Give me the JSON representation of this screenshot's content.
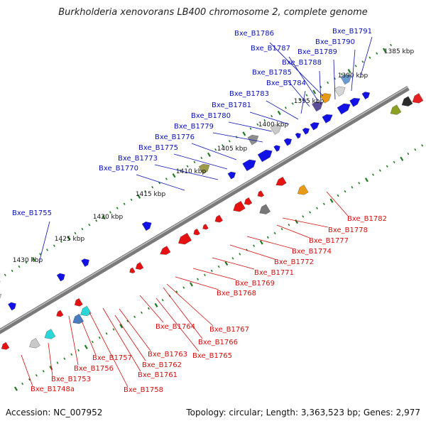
{
  "title": "Burkholderia xenovorans LB400 chromosome 2, complete genome",
  "footer": {
    "accession": "Accession: NC_007952",
    "summary": "Topology: circular; Length: 3,363,523 bp; Genes: 2,977"
  },
  "colors": {
    "forward_label": "#0a10b8",
    "reverse_label": "#d40d0d",
    "backbone": "#7a7a7a",
    "tick": "#1f7a1f",
    "forward_gene": "#1212e6",
    "reverse_gene": "#e61212"
  },
  "kbp_labels": [
    "1385 kbp",
    "1390 kbp",
    "1395 kbp",
    "1400 kbp",
    "1405 kbp",
    "1410 kbp",
    "1415 kbp",
    "1420 kbp",
    "1425 kbp",
    "1430 kbp"
  ],
  "forward_labels": [
    "Bxe_B1786",
    "Bxe_B1787",
    "Bxe_B1788",
    "Bxe_B1789",
    "Bxe_B1790",
    "Bxe_B1791",
    "Bxe_B1785",
    "Bxe_B1784",
    "Bxe_B1783",
    "Bxe_B1781",
    "Bxe_B1780",
    "Bxe_B1779",
    "Bxe_B1776",
    "Bxe_B1775",
    "Bxe_B1773",
    "Bxe_B1770",
    "Bxe_B1755"
  ],
  "reverse_labels": [
    "Bxe_B1782",
    "Bxe_B1778",
    "Bxe_B1777",
    "Bxe_B1774",
    "Bxe_B1772",
    "Bxe_B1771",
    "Bxe_B1769",
    "Bxe_B1768",
    "Bxe_B1767",
    "Bxe_B1764",
    "Bxe_B1766",
    "Bxe_B1765",
    "Bxe_B1763",
    "Bxe_B1762",
    "Bxe_B1761",
    "Bxe_B1757",
    "Bxe_B1756",
    "Bxe_B1758",
    "Bxe_B1753",
    "Bxe_B1748a"
  ]
}
